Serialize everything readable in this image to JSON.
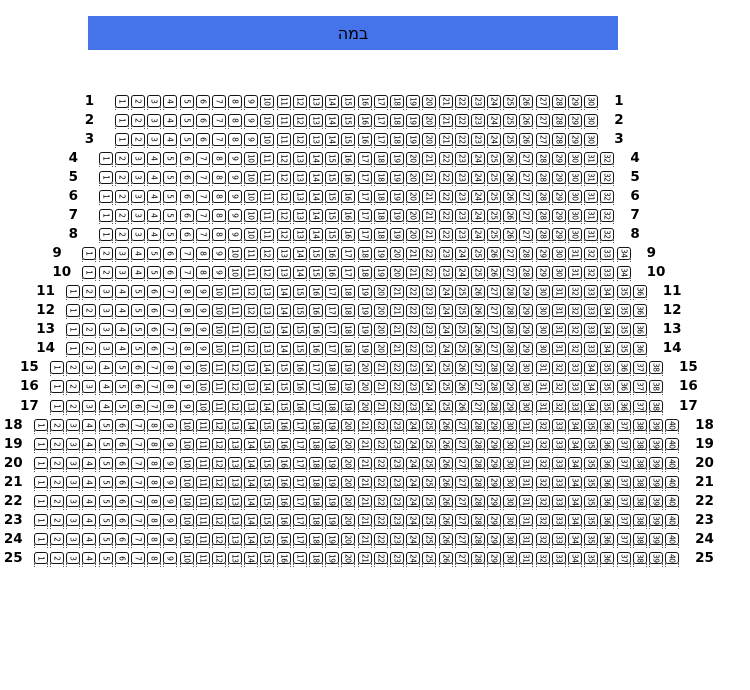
{
  "stage": {
    "label": "במה",
    "background": "#4573E9",
    "text_color": "#000000"
  },
  "seating": {
    "rows": [
      {
        "row": "1",
        "seats": 30
      },
      {
        "row": "2",
        "seats": 30
      },
      {
        "row": "3",
        "seats": 30
      },
      {
        "row": "4",
        "seats": 32
      },
      {
        "row": "5",
        "seats": 32
      },
      {
        "row": "6",
        "seats": 32
      },
      {
        "row": "7",
        "seats": 32
      },
      {
        "row": "8",
        "seats": 32
      },
      {
        "row": "9",
        "seats": 34
      },
      {
        "row": "10",
        "seats": 34
      },
      {
        "row": "11",
        "seats": 36
      },
      {
        "row": "12",
        "seats": 36
      },
      {
        "row": "13",
        "seats": 36
      },
      {
        "row": "14",
        "seats": 36
      },
      {
        "row": "15",
        "seats": 38
      },
      {
        "row": "16",
        "seats": 38
      },
      {
        "row": "17",
        "seats": 38
      },
      {
        "row": "18",
        "seats": 40
      },
      {
        "row": "19",
        "seats": 40
      },
      {
        "row": "20",
        "seats": 40
      },
      {
        "row": "21",
        "seats": 40
      },
      {
        "row": "22",
        "seats": 40
      },
      {
        "row": "23",
        "seats": 40
      },
      {
        "row": "24",
        "seats": 40
      },
      {
        "row": "25",
        "seats": 40
      }
    ]
  }
}
